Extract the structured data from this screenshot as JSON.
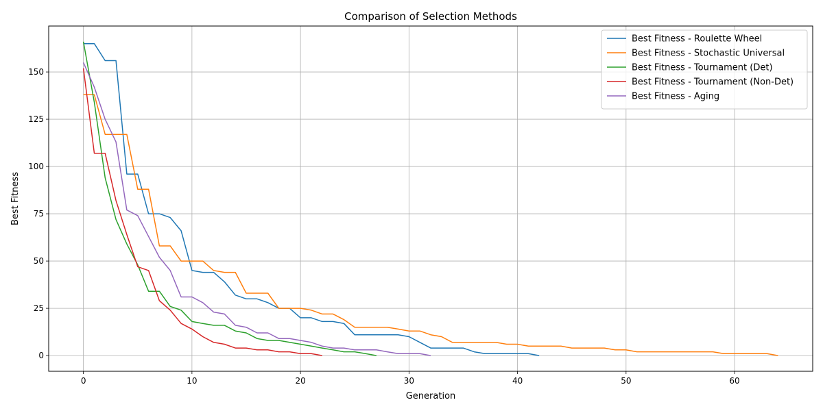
{
  "chart_data": {
    "type": "line",
    "title": "Comparison of Selection Methods",
    "xlabel": "Generation",
    "ylabel": "Best Fitness",
    "xlim": [
      -3.2,
      67.2
    ],
    "ylim": [
      -8.3,
      174.3
    ],
    "xticks": [
      0,
      10,
      20,
      30,
      40,
      50,
      60
    ],
    "yticks": [
      0,
      25,
      50,
      75,
      100,
      125,
      150
    ],
    "grid": true,
    "legend": "top-right",
    "series": [
      {
        "name": "Best Fitness - Roulette Wheel",
        "color": "#1f77b4",
        "values": [
          165,
          165,
          156,
          156,
          96,
          96,
          75,
          75,
          73,
          66,
          45,
          44,
          44,
          39,
          32,
          30,
          30,
          28,
          25,
          25,
          20,
          20,
          18,
          18,
          17,
          11,
          11,
          11,
          11,
          11,
          10,
          7,
          4,
          4,
          4,
          4,
          2,
          1,
          1,
          1,
          1,
          1,
          0
        ]
      },
      {
        "name": "Best Fitness - Stochastic Universal",
        "color": "#ff7f0e",
        "values": [
          138,
          138,
          117,
          117,
          117,
          88,
          88,
          58,
          58,
          50,
          50,
          50,
          45,
          44,
          44,
          33,
          33,
          33,
          25,
          25,
          25,
          24,
          22,
          22,
          19,
          15,
          15,
          15,
          15,
          14,
          13,
          13,
          11,
          10,
          7,
          7,
          7,
          7,
          7,
          6,
          6,
          5,
          5,
          5,
          5,
          4,
          4,
          4,
          4,
          3,
          3,
          2,
          2,
          2,
          2,
          2,
          2,
          2,
          2,
          1,
          1,
          1,
          1,
          1,
          0
        ]
      },
      {
        "name": "Best Fitness - Tournament (Det)",
        "color": "#2ca02c",
        "values": [
          166,
          134,
          94,
          72,
          59,
          48,
          34,
          34,
          26,
          24,
          18,
          17,
          16,
          16,
          13,
          12,
          9,
          8,
          8,
          7,
          6,
          5,
          4,
          3,
          2,
          2,
          1,
          0
        ]
      },
      {
        "name": "Best Fitness - Tournament (Non-Det)",
        "color": "#d62728",
        "values": [
          152,
          107,
          107,
          82,
          64,
          47,
          45,
          29,
          24,
          17,
          14,
          10,
          7,
          6,
          4,
          4,
          3,
          3,
          2,
          2,
          1,
          1,
          0
        ]
      },
      {
        "name": "Best Fitness - Aging",
        "color": "#9467bd",
        "values": [
          155,
          142,
          125,
          113,
          77,
          74,
          63,
          52,
          45,
          31,
          31,
          28,
          23,
          22,
          16,
          15,
          12,
          12,
          9,
          9,
          8,
          7,
          5,
          4,
          4,
          3,
          3,
          3,
          2,
          1,
          1,
          1,
          0
        ]
      }
    ]
  }
}
